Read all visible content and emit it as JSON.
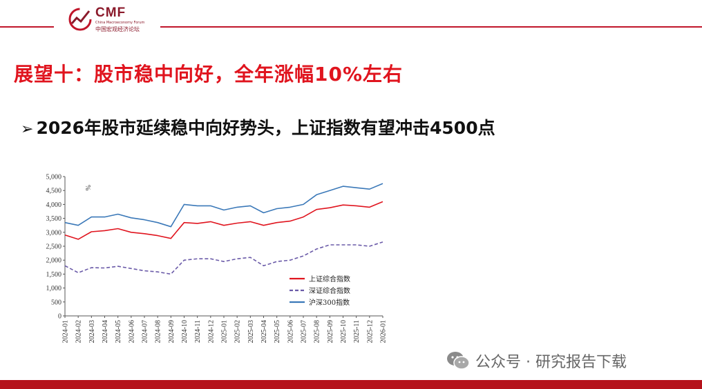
{
  "header": {
    "logo_name": "CMF",
    "logo_sub": "China Macroeconomy Forum",
    "logo_cn": "中国宏观经济论坛"
  },
  "slide": {
    "title": "展望十：股市稳中向好，全年涨幅10%左右",
    "bullet": "➢",
    "subtitle": "2026年股市延续稳中向好势头，上证指数有望冲击4500点"
  },
  "watermark": {
    "icon": "wechat-icon",
    "text": "公众号 · 研究报告下载"
  },
  "colors": {
    "accent": "#c0152a",
    "title": "#e0141e",
    "bottom_bar": "#b5121b",
    "series_sh": "#e0141e",
    "series_sz": "#6a5aa8",
    "series_hs300": "#3a78b8"
  },
  "chart_data": {
    "type": "line",
    "unit_label": "%",
    "x": [
      "2024-01",
      "2024-02",
      "2024-03",
      "2024-04",
      "2024-05",
      "2024-06",
      "2024-07",
      "2024-08",
      "2024-09",
      "2024-10",
      "2024-11",
      "2024-12",
      "2025-01",
      "2025-02",
      "2025-03",
      "2025-04",
      "2025-05",
      "2025-06",
      "2025-07",
      "2025-08",
      "2025-09",
      "2025-10",
      "2025-11",
      "2025-12",
      "2026-01"
    ],
    "ylim": [
      0,
      5000
    ],
    "yticks": [
      "0",
      "500",
      "1,000",
      "1,500",
      "2,000",
      "2,500",
      "3,000",
      "3,500",
      "4,000",
      "4,500",
      "5,000"
    ],
    "ytick_values": [
      0,
      500,
      1000,
      1500,
      2000,
      2500,
      3000,
      3500,
      4000,
      4500,
      5000
    ],
    "legend_position": "lower-right",
    "grid": false,
    "series": [
      {
        "name": "上证综合指数",
        "style": "solid",
        "color": "#e0141e",
        "values": [
          2900,
          2750,
          3020,
          3060,
          3130,
          3000,
          2950,
          2880,
          2780,
          3350,
          3320,
          3380,
          3250,
          3330,
          3380,
          3250,
          3350,
          3400,
          3550,
          3820,
          3880,
          3980,
          3950,
          3900,
          4100
        ]
      },
      {
        "name": "深证综合指数",
        "style": "dashed",
        "color": "#6a5aa8",
        "values": [
          1800,
          1550,
          1730,
          1720,
          1780,
          1700,
          1620,
          1580,
          1500,
          2000,
          2050,
          2050,
          1950,
          2050,
          2100,
          1800,
          1950,
          2000,
          2150,
          2400,
          2550,
          2550,
          2550,
          2500,
          2650
        ]
      },
      {
        "name": "沪深300指数",
        "style": "solid",
        "color": "#3a78b8",
        "values": [
          3350,
          3250,
          3550,
          3550,
          3650,
          3520,
          3450,
          3350,
          3200,
          4000,
          3950,
          3950,
          3800,
          3900,
          3950,
          3700,
          3850,
          3900,
          4000,
          4350,
          4500,
          4650,
          4600,
          4550,
          4750
        ]
      }
    ]
  }
}
